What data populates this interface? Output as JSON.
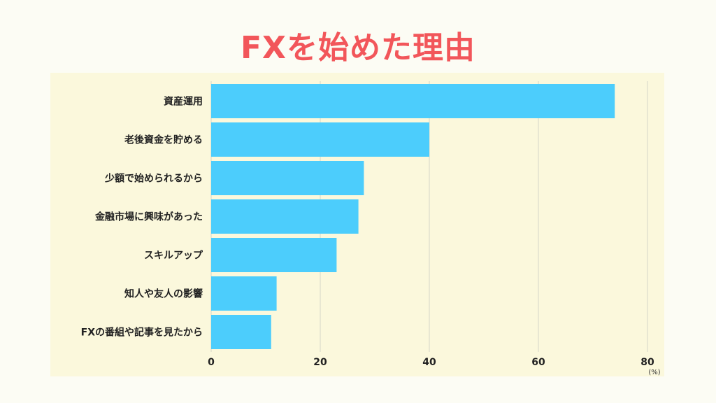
{
  "chart_data": {
    "type": "bar",
    "orientation": "horizontal",
    "title": "FXを始めた理由",
    "categories": [
      "資産運用",
      "老後資金を貯める",
      "少額で始められるから",
      "金融市場に興味があった",
      "スキルアップ",
      "知人や友人の影響",
      "FXの番組や記事を見たから"
    ],
    "values": [
      74,
      40,
      28,
      27,
      23,
      12,
      11
    ],
    "xlim": [
      0,
      80
    ],
    "xticks": [
      "0",
      "20",
      "40",
      "60",
      "80"
    ],
    "unit": "(%)",
    "grid": true,
    "colors": {
      "bar": "#4ccdfc",
      "title": "#f2565a",
      "panel": "#fbf8dc",
      "grid": "#d6d6c8"
    }
  }
}
